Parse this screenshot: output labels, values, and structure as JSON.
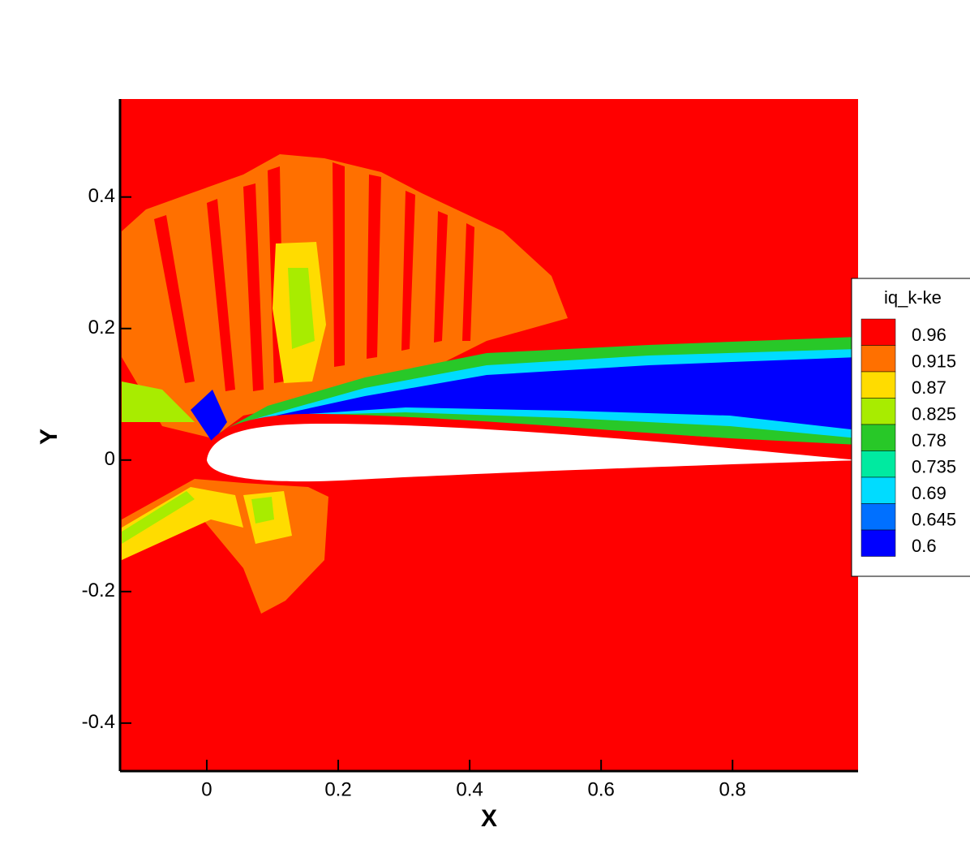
{
  "chart_data": {
    "type": "contour",
    "x_label": "X",
    "y_label": "Y",
    "xlim": [
      -0.132,
      0.991
    ],
    "ylim": [
      -0.473,
      0.549
    ],
    "xticks": [
      0,
      0.2,
      0.4,
      0.6,
      0.8
    ],
    "yticks": [
      -0.4,
      -0.2,
      0,
      0.2,
      0.4
    ],
    "legend_title": "iq_k-ke",
    "levels": [
      0.96,
      0.915,
      0.87,
      0.825,
      0.78,
      0.735,
      0.69,
      0.645,
      0.6
    ],
    "colors": [
      "#ff0000",
      "#ff7000",
      "#ffdc00",
      "#a8ec00",
      "#28c828",
      "#00eaa0",
      "#00dcff",
      "#0070ff",
      "#0000ff"
    ],
    "legend_position": "right"
  }
}
